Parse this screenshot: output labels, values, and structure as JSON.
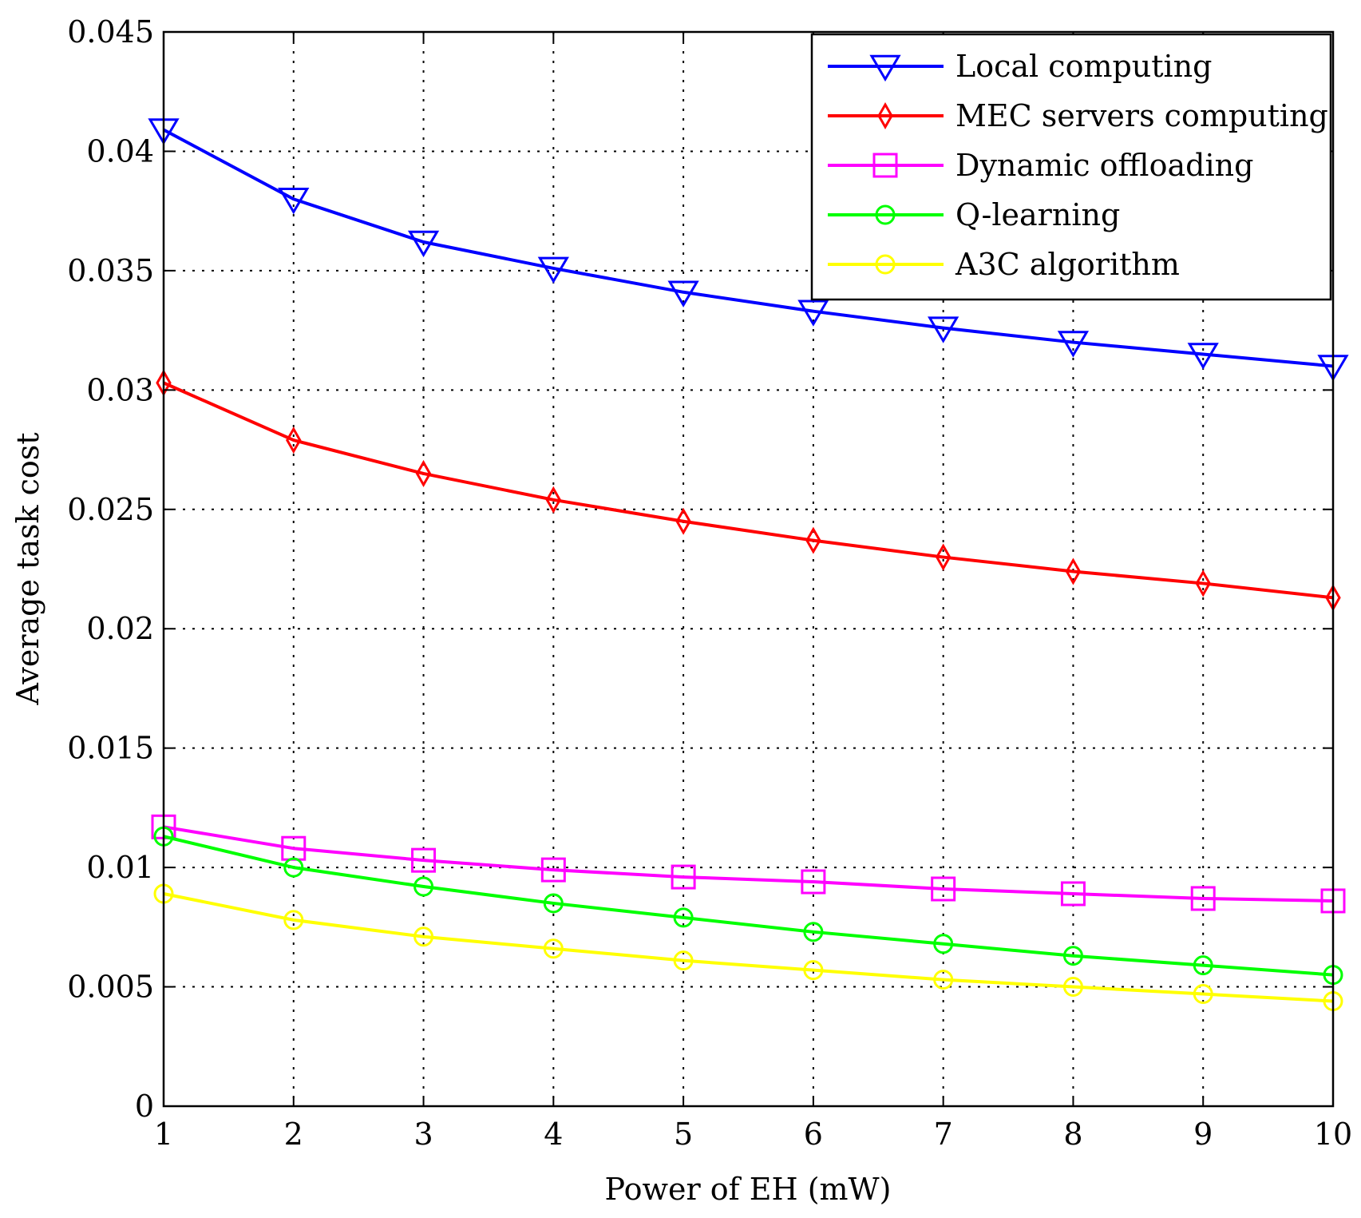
{
  "chart_data": {
    "type": "line",
    "title": "",
    "xlabel": "Power of EH (mW)",
    "ylabel": "Average task cost",
    "x": [
      1,
      2,
      3,
      4,
      5,
      6,
      7,
      8,
      9,
      10
    ],
    "xlim": [
      1,
      10
    ],
    "ylim": [
      0,
      0.045
    ],
    "xticks": [
      "1",
      "2",
      "3",
      "4",
      "5",
      "6",
      "7",
      "8",
      "9",
      "10"
    ],
    "yticks": [
      "0",
      "0.005",
      "0.01",
      "0.015",
      "0.02",
      "0.025",
      "0.03",
      "0.035",
      "0.04",
      "0.045"
    ],
    "grid": true,
    "legend_position": "top-right",
    "series": [
      {
        "name": "Local computing",
        "color": "#0000ff",
        "marker": "triangle-down",
        "values": [
          0.0409,
          0.038,
          0.0362,
          0.0351,
          0.0341,
          0.0333,
          0.0326,
          0.032,
          0.0315,
          0.031
        ]
      },
      {
        "name": "MEC servers computing",
        "color": "#ff0000",
        "marker": "diamond",
        "values": [
          0.0303,
          0.0279,
          0.0265,
          0.0254,
          0.0245,
          0.0237,
          0.023,
          0.0224,
          0.0219,
          0.0213
        ]
      },
      {
        "name": "Dynamic offloading",
        "color": "#ff00ff",
        "marker": "square",
        "values": [
          0.0117,
          0.0108,
          0.0103,
          0.0099,
          0.0096,
          0.0094,
          0.0091,
          0.0089,
          0.0087,
          0.0086
        ]
      },
      {
        "name": "Q-learning",
        "color": "#00ff00",
        "marker": "circle",
        "values": [
          0.0113,
          0.01,
          0.0092,
          0.0085,
          0.0079,
          0.0073,
          0.0068,
          0.0063,
          0.0059,
          0.0055
        ]
      },
      {
        "name": "A3C algorithm",
        "color": "#ffff00",
        "marker": "circle",
        "values": [
          0.0089,
          0.0078,
          0.0071,
          0.0066,
          0.0061,
          0.0057,
          0.0053,
          0.005,
          0.0047,
          0.0044
        ]
      }
    ]
  }
}
